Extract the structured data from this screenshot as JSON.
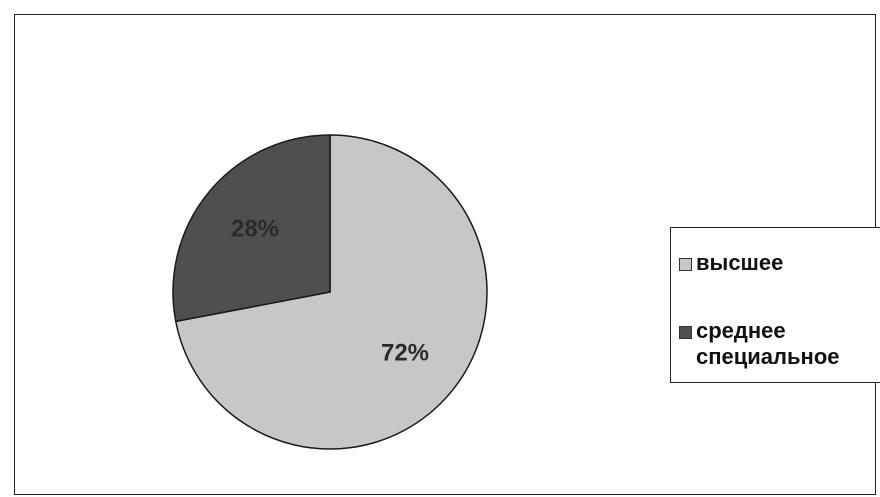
{
  "chart_data": {
    "type": "pie",
    "categories": [
      "высшее",
      "среднее специальное"
    ],
    "values": [
      72,
      28
    ],
    "labels": [
      "72%",
      "28%"
    ],
    "colors": [
      "#c7c7c7",
      "#4f4f4f"
    ],
    "title": "",
    "legend": {
      "position": "right",
      "entries": [
        "высшее",
        "среднее специальное"
      ]
    }
  }
}
